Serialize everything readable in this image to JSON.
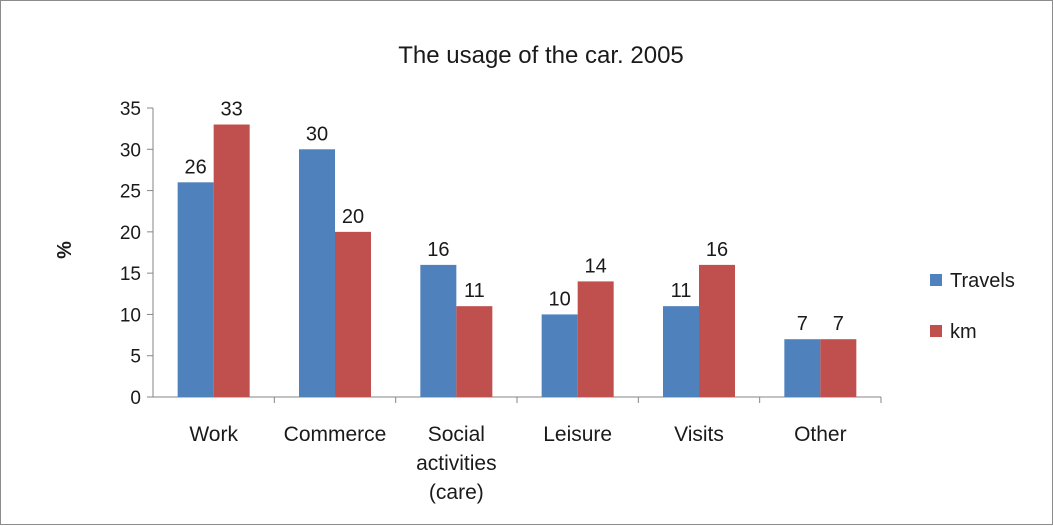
{
  "chart_data": {
    "type": "bar",
    "title": "The usage of the car. 2005",
    "xlabel": "",
    "ylabel": "%",
    "ylim": [
      0,
      35
    ],
    "yticks": [
      0,
      5,
      10,
      15,
      20,
      25,
      30,
      35
    ],
    "grid": false,
    "legend_position": "right",
    "categories": [
      [
        "Work"
      ],
      [
        "Commerce"
      ],
      [
        "Social",
        "activities",
        "(care)"
      ],
      [
        "Leisure"
      ],
      [
        "Visits"
      ],
      [
        "Other"
      ]
    ],
    "series": [
      {
        "name": "Travels",
        "color": "#4f81bd",
        "values": [
          26,
          30,
          16,
          10,
          11,
          7
        ]
      },
      {
        "name": "km",
        "color": "#c0504d",
        "values": [
          33,
          20,
          11,
          14,
          16,
          7
        ]
      }
    ]
  }
}
